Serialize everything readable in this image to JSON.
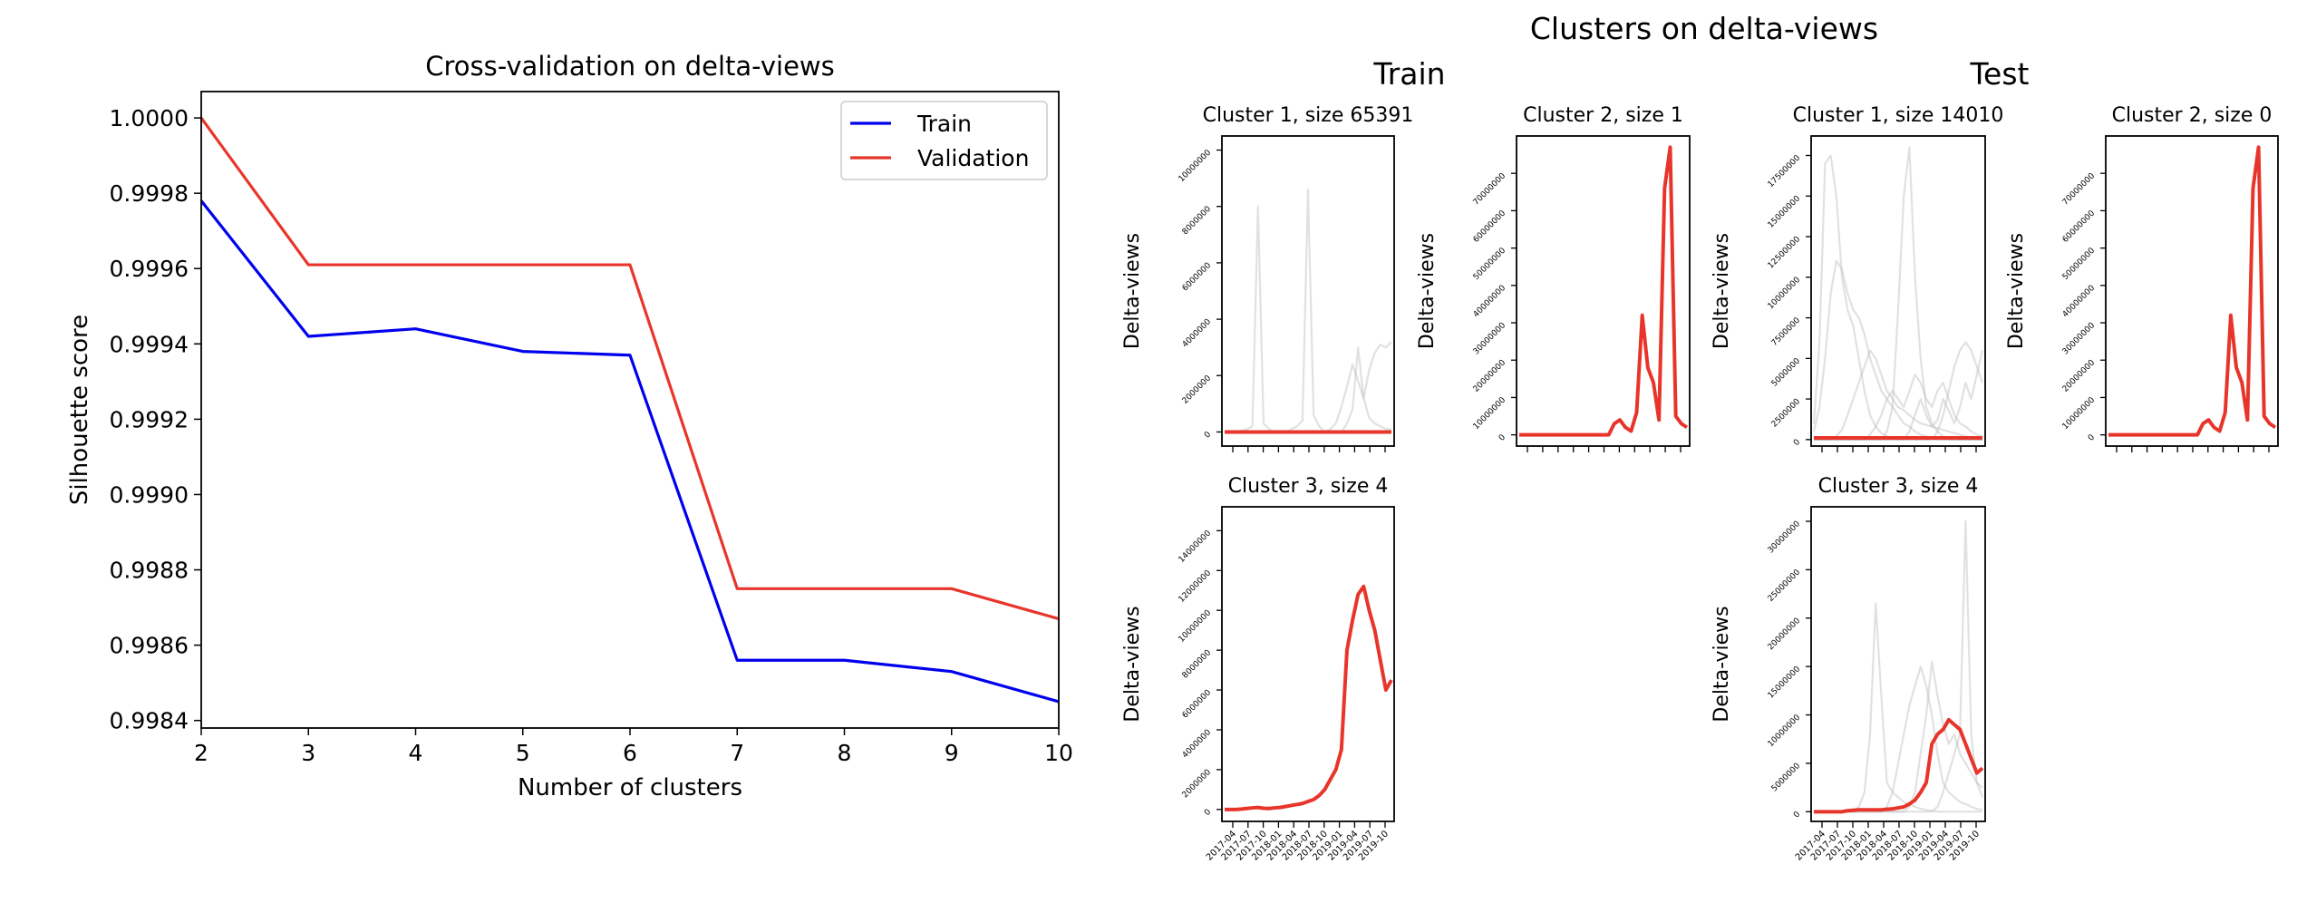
{
  "colors": {
    "train": "#0000ee",
    "validation": "#e8352b",
    "member": "#bdbdbd",
    "axis": "#000000"
  },
  "main_title": "Clusters on delta-views",
  "group_titles": {
    "train": "Train",
    "test": "Test"
  },
  "chart_data": [
    {
      "type": "line",
      "title": "Cross-validation on delta-views",
      "xlabel": "Number of clusters",
      "ylabel": "Silhouette score",
      "x": [
        2,
        3,
        4,
        5,
        6,
        7,
        8,
        9,
        10
      ],
      "xlim": [
        2,
        10
      ],
      "ylim": [
        0.99838,
        1.00007
      ],
      "xticks": [
        "2",
        "3",
        "4",
        "5",
        "6",
        "7",
        "8",
        "9",
        "10"
      ],
      "yticks": [
        "0.9984",
        "0.9986",
        "0.9988",
        "0.9990",
        "0.9992",
        "0.9994",
        "0.9996",
        "0.9998",
        "1.0000"
      ],
      "ytick_values": [
        0.9984,
        0.9986,
        0.9988,
        0.999,
        0.9992,
        0.9994,
        0.9996,
        0.9998,
        1.0
      ],
      "legend_position": "top-right",
      "series": [
        {
          "name": "Train",
          "values": [
            0.99978,
            0.99942,
            0.99944,
            0.99938,
            0.99937,
            0.99856,
            0.99856,
            0.99853,
            0.99845
          ]
        },
        {
          "name": "Validation",
          "values": [
            1.0,
            0.99961,
            0.99961,
            0.99961,
            0.99961,
            0.99875,
            0.99875,
            0.99875,
            0.99867
          ]
        }
      ]
    },
    {
      "type": "line",
      "group": "train",
      "title": "Cluster 1, size 65391",
      "ylabel": "Delta-views",
      "ylim": [
        -500000,
        10500000
      ],
      "yticks": [
        "0",
        "2000000",
        "4000000",
        "6000000",
        "8000000",
        "10000000"
      ],
      "ytick_values": [
        0,
        2000000,
        4000000,
        6000000,
        8000000,
        10000000
      ],
      "xticks": [],
      "mean_values": [
        0,
        0,
        0,
        0,
        0,
        0,
        0,
        0,
        0,
        0,
        0,
        0,
        0,
        0,
        0,
        0,
        0,
        0,
        0,
        0,
        0,
        0,
        0,
        0,
        0,
        0,
        0,
        0,
        0,
        0,
        0
      ],
      "members": [
        [
          0,
          0,
          0,
          50000,
          100000,
          200000,
          8000000,
          300000,
          100000,
          0,
          0,
          0,
          0,
          0,
          0,
          0,
          0,
          0,
          0,
          0,
          0,
          0,
          0,
          0,
          0,
          0,
          0,
          0,
          0,
          0,
          0
        ],
        [
          0,
          0,
          0,
          0,
          0,
          0,
          0,
          0,
          0,
          0,
          0,
          0,
          100000,
          200000,
          400000,
          8600000,
          600000,
          200000,
          0,
          0,
          0,
          0,
          0,
          0,
          0,
          0,
          0,
          0,
          0,
          0,
          0
        ],
        [
          0,
          0,
          0,
          0,
          0,
          0,
          0,
          0,
          0,
          0,
          0,
          0,
          0,
          0,
          0,
          0,
          0,
          0,
          0,
          100000,
          300000,
          900000,
          1600000,
          2400000,
          1800000,
          1200000,
          2200000,
          2800000,
          3100000,
          3000000,
          3200000
        ],
        [
          0,
          0,
          0,
          0,
          0,
          0,
          0,
          0,
          0,
          0,
          0,
          0,
          0,
          0,
          0,
          0,
          0,
          0,
          0,
          0,
          0,
          0,
          300000,
          800000,
          3000000,
          1200000,
          500000,
          300000,
          200000,
          100000,
          100000
        ]
      ]
    },
    {
      "type": "line",
      "group": "train",
      "title": "Cluster 2, size 1",
      "ylabel": "Delta-views",
      "ylim": [
        -3000000,
        80000000
      ],
      "yticks": [
        "0",
        "10000000",
        "20000000",
        "30000000",
        "40000000",
        "50000000",
        "60000000",
        "70000000"
      ],
      "ytick_values": [
        0,
        10000000,
        20000000,
        30000000,
        40000000,
        50000000,
        60000000,
        70000000
      ],
      "xticks": [],
      "mean_values": [
        0,
        0,
        0,
        0,
        0,
        0,
        0,
        0,
        0,
        0,
        0,
        0,
        0,
        0,
        0,
        0,
        0,
        3000000,
        4000000,
        2000000,
        1000000,
        6000000,
        32000000,
        18000000,
        14000000,
        4000000,
        66000000,
        77000000,
        5000000,
        3000000,
        2000000
      ],
      "members": []
    },
    {
      "type": "line",
      "group": "train",
      "title": "Cluster 3, size 4",
      "ylabel": "Delta-views",
      "xlabel": "",
      "ylim": [
        -600000,
        15200000
      ],
      "yticks": [
        "0",
        "2000000",
        "4000000",
        "6000000",
        "8000000",
        "10000000",
        "12000000",
        "14000000"
      ],
      "ytick_values": [
        0,
        2000000,
        4000000,
        6000000,
        8000000,
        10000000,
        12000000,
        14000000
      ],
      "xticks": [
        "2017-04",
        "2017-07",
        "2017-10",
        "2018-01",
        "2018-04",
        "2018-07",
        "2018-10",
        "2019-01",
        "2019-04",
        "2019-07",
        "2019-10"
      ],
      "mean_values": [
        0,
        0,
        0,
        20000,
        50000,
        80000,
        100000,
        60000,
        50000,
        80000,
        100000,
        150000,
        200000,
        250000,
        300000,
        400000,
        500000,
        700000,
        1000000,
        1500000,
        2000000,
        3000000,
        8000000,
        9500000,
        10800000,
        11200000,
        10000000,
        9000000,
        7500000,
        6000000,
        6500000
      ],
      "members": []
    },
    {
      "type": "line",
      "group": "test",
      "title": "Cluster 1, size 14010",
      "ylabel": "Delta-views",
      "ylim": [
        -400000,
        18700000
      ],
      "yticks": [
        "0",
        "2500000",
        "5000000",
        "7500000",
        "10000000",
        "12500000",
        "15000000",
        "17500000"
      ],
      "ytick_values": [
        0,
        2500000,
        5000000,
        7500000,
        10000000,
        12500000,
        15000000,
        17500000
      ],
      "xticks": [],
      "mean_values": [
        100000,
        100000,
        100000,
        100000,
        100000,
        100000,
        100000,
        100000,
        100000,
        100000,
        100000,
        100000,
        100000,
        100000,
        100000,
        100000,
        100000,
        100000,
        100000,
        100000,
        100000,
        100000,
        100000,
        100000,
        100000,
        100000,
        100000,
        100000,
        100000,
        100000,
        100000
      ],
      "members": [
        [
          1000000,
          6000000,
          17000000,
          17500000,
          15000000,
          10000000,
          8000000,
          7000000,
          5000000,
          3000000,
          1500000,
          800000,
          400000,
          200000,
          100000,
          0,
          0,
          0,
          0,
          0,
          0,
          0,
          0,
          0,
          0,
          0,
          0,
          0,
          0,
          0,
          0
        ],
        [
          500000,
          2000000,
          5000000,
          9000000,
          11000000,
          10500000,
          9000000,
          8000000,
          7500000,
          6500000,
          5000000,
          4000000,
          3000000,
          2500000,
          2000000,
          1500000,
          1000000,
          800000,
          500000,
          300000,
          200000,
          100000,
          0,
          0,
          0,
          0,
          0,
          0,
          0,
          0,
          0
        ],
        [
          0,
          0,
          0,
          0,
          0,
          0,
          0,
          0,
          0,
          0,
          0,
          0,
          0,
          500000,
          2000000,
          8000000,
          15000000,
          18000000,
          10000000,
          5000000,
          2000000,
          1000000,
          500000,
          200000,
          0,
          0,
          0,
          0,
          0,
          0,
          0
        ],
        [
          0,
          0,
          0,
          0,
          200000,
          600000,
          1500000,
          2500000,
          3500000,
          4500000,
          5500000,
          5000000,
          4000000,
          3000000,
          2500000,
          2000000,
          1800000,
          1500000,
          1200000,
          1000000,
          900000,
          800000,
          700000,
          600000,
          500000,
          400000,
          300000,
          200000,
          100000,
          0,
          0
        ],
        [
          0,
          0,
          0,
          0,
          0,
          0,
          0,
          0,
          0,
          0,
          0,
          0,
          0,
          0,
          0,
          0,
          0,
          500000,
          1500000,
          2500000,
          1500000,
          800000,
          1200000,
          2500000,
          1800000,
          1000000,
          2000000,
          3500000,
          2500000,
          4000000,
          5500000
        ],
        [
          0,
          0,
          0,
          0,
          0,
          0,
          0,
          0,
          0,
          0,
          300000,
          800000,
          1500000,
          2500000,
          3000000,
          2500000,
          2000000,
          3000000,
          4000000,
          3500000,
          2500000,
          2000000,
          3000000,
          3500000,
          2500000,
          1500000,
          1000000,
          800000,
          500000,
          300000,
          200000
        ],
        [
          0,
          0,
          0,
          0,
          0,
          0,
          0,
          0,
          0,
          0,
          0,
          0,
          0,
          0,
          0,
          0,
          0,
          0,
          0,
          0,
          0,
          0,
          500000,
          1500000,
          3000000,
          4500000,
          5500000,
          6000000,
          5500000,
          4500000,
          3500000
        ]
      ]
    },
    {
      "type": "line",
      "group": "test",
      "title": "Cluster 2, size 0",
      "ylabel": "Delta-views",
      "ylim": [
        -3000000,
        80000000
      ],
      "yticks": [
        "0",
        "10000000",
        "20000000",
        "30000000",
        "40000000",
        "50000000",
        "60000000",
        "70000000"
      ],
      "ytick_values": [
        0,
        10000000,
        20000000,
        30000000,
        40000000,
        50000000,
        60000000,
        70000000
      ],
      "xticks": [],
      "mean_values": [
        0,
        0,
        0,
        0,
        0,
        0,
        0,
        0,
        0,
        0,
        0,
        0,
        0,
        0,
        0,
        0,
        0,
        3000000,
        4000000,
        2000000,
        1000000,
        6000000,
        32000000,
        18000000,
        14000000,
        4000000,
        66000000,
        77000000,
        5000000,
        3000000,
        2000000
      ],
      "members": []
    },
    {
      "type": "line",
      "group": "test",
      "title": "Cluster 3, size 4",
      "ylabel": "Delta-views",
      "xlabel": "",
      "ylim": [
        -1000000,
        31500000
      ],
      "yticks": [
        "0",
        "5000000",
        "10000000",
        "15000000",
        "20000000",
        "25000000",
        "30000000"
      ],
      "ytick_values": [
        0,
        5000000,
        10000000,
        15000000,
        20000000,
        25000000,
        30000000
      ],
      "xticks": [
        "2017-04",
        "2017-07",
        "2017-10",
        "2018-01",
        "2018-04",
        "2018-07",
        "2018-10",
        "2019-01",
        "2019-04",
        "2019-07",
        "2019-10"
      ],
      "mean_values": [
        0,
        0,
        0,
        0,
        0,
        0,
        100000,
        150000,
        200000,
        200000,
        200000,
        200000,
        200000,
        250000,
        300000,
        400000,
        500000,
        800000,
        1200000,
        2000000,
        3000000,
        7000000,
        8000000,
        8500000,
        9500000,
        9000000,
        8500000,
        7000000,
        5500000,
        4000000,
        4500000
      ],
      "members": [
        [
          0,
          0,
          0,
          0,
          0,
          0,
          0,
          0,
          500000,
          2000000,
          8000000,
          21500000,
          12000000,
          3000000,
          2000000,
          1500000,
          1000000,
          800000,
          500000,
          300000,
          200000,
          100000,
          0,
          0,
          0,
          0,
          0,
          0,
          0,
          0,
          0
        ],
        [
          0,
          0,
          0,
          0,
          0,
          0,
          0,
          0,
          0,
          0,
          0,
          0,
          0,
          500000,
          2000000,
          5000000,
          8000000,
          11000000,
          13000000,
          15000000,
          13000000,
          10000000,
          6000000,
          3000000,
          2000000,
          1500000,
          1000000,
          800000,
          500000,
          300000,
          200000
        ],
        [
          0,
          0,
          0,
          0,
          0,
          0,
          0,
          0,
          0,
          0,
          0,
          0,
          0,
          0,
          0,
          0,
          0,
          500000,
          2000000,
          6000000,
          10000000,
          15500000,
          12000000,
          9000000,
          7000000,
          8000000,
          6000000,
          5000000,
          4000000,
          3000000,
          2500000
        ],
        [
          0,
          0,
          0,
          0,
          0,
          0,
          0,
          0,
          0,
          0,
          0,
          0,
          0,
          0,
          0,
          0,
          0,
          0,
          0,
          0,
          0,
          0,
          500000,
          2000000,
          4000000,
          6000000,
          8000000,
          30000000,
          8000000,
          3000000,
          1500000
        ]
      ]
    }
  ]
}
